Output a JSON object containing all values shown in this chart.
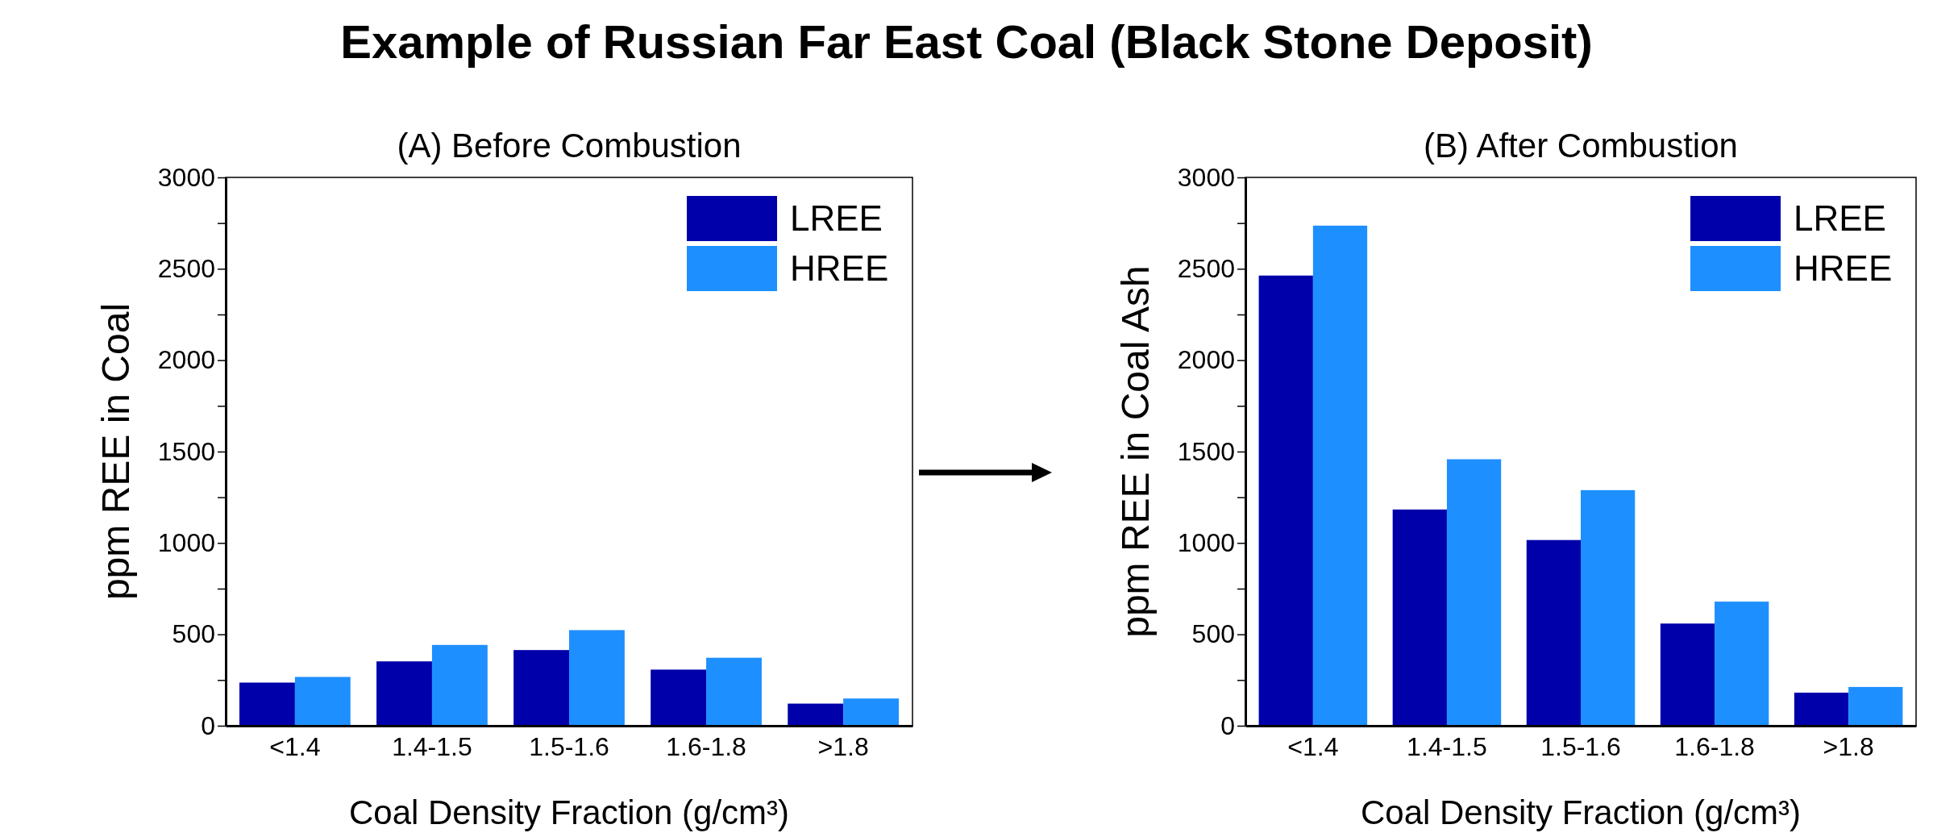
{
  "chart_data": [
    {
      "type": "bar",
      "title": "(A) Before Combustion",
      "xlabel": "Coal Density Fraction (g/cm³)",
      "ylabel": "ppm REE in Coal",
      "annotations": [
        "Example of Russian Far East Coal (Black Stone Deposit)"
      ],
      "categories": [
        "<1.4",
        "1.4-1.5",
        "1.5-1.6",
        "1.6-1.8",
        ">1.8"
      ],
      "series": [
        {
          "name": "LREE",
          "color": "#0000aa",
          "values": [
            236,
            352,
            414,
            307,
            121
          ]
        },
        {
          "name": "HREE",
          "color": "#1e8fff",
          "values": [
            267,
            442,
            523,
            372,
            149
          ]
        }
      ],
      "ylim": [
        0,
        3000
      ],
      "yticks": [
        0,
        {
          "value": 250,
          "label": null
        },
        500,
        {
          "value": 750,
          "label": null
        },
        1000,
        {
          "value": 1250,
          "label": null
        },
        1500,
        {
          "value": 1750,
          "label": null
        },
        2000,
        {
          "value": 2250,
          "label": null
        },
        2500,
        {
          "value": 2750,
          "label": null
        },
        3000
      ],
      "legend": "top right"
    },
    {
      "type": "bar",
      "title": "(B) After Combustion",
      "xlabel": "Coal Density Fraction (g/cm³)",
      "ylabel": "ppm REE in Coal Ash",
      "categories": [
        "<1.4",
        "1.4-1.5",
        "1.5-1.6",
        "1.6-1.8",
        ">1.8"
      ],
      "series": [
        {
          "name": "LREE",
          "color": "#0000aa",
          "values": [
            2463,
            1183,
            1016,
            559,
            181
          ]
        },
        {
          "name": "HREE",
          "color": "#1e8fff",
          "values": [
            2736,
            1458,
            1289,
            679,
            212
          ]
        }
      ],
      "ylim": [
        0,
        3000
      ],
      "yticks": [
        0,
        {
          "value": 250,
          "label": null
        },
        500,
        {
          "value": 750,
          "label": null
        },
        1000,
        {
          "value": 1250,
          "label": null
        },
        1500,
        {
          "value": 1750,
          "label": null
        },
        2000,
        {
          "value": 2250,
          "label": null
        },
        2500,
        {
          "value": 2750,
          "label": null
        },
        3000
      ],
      "legend": "top right"
    }
  ]
}
